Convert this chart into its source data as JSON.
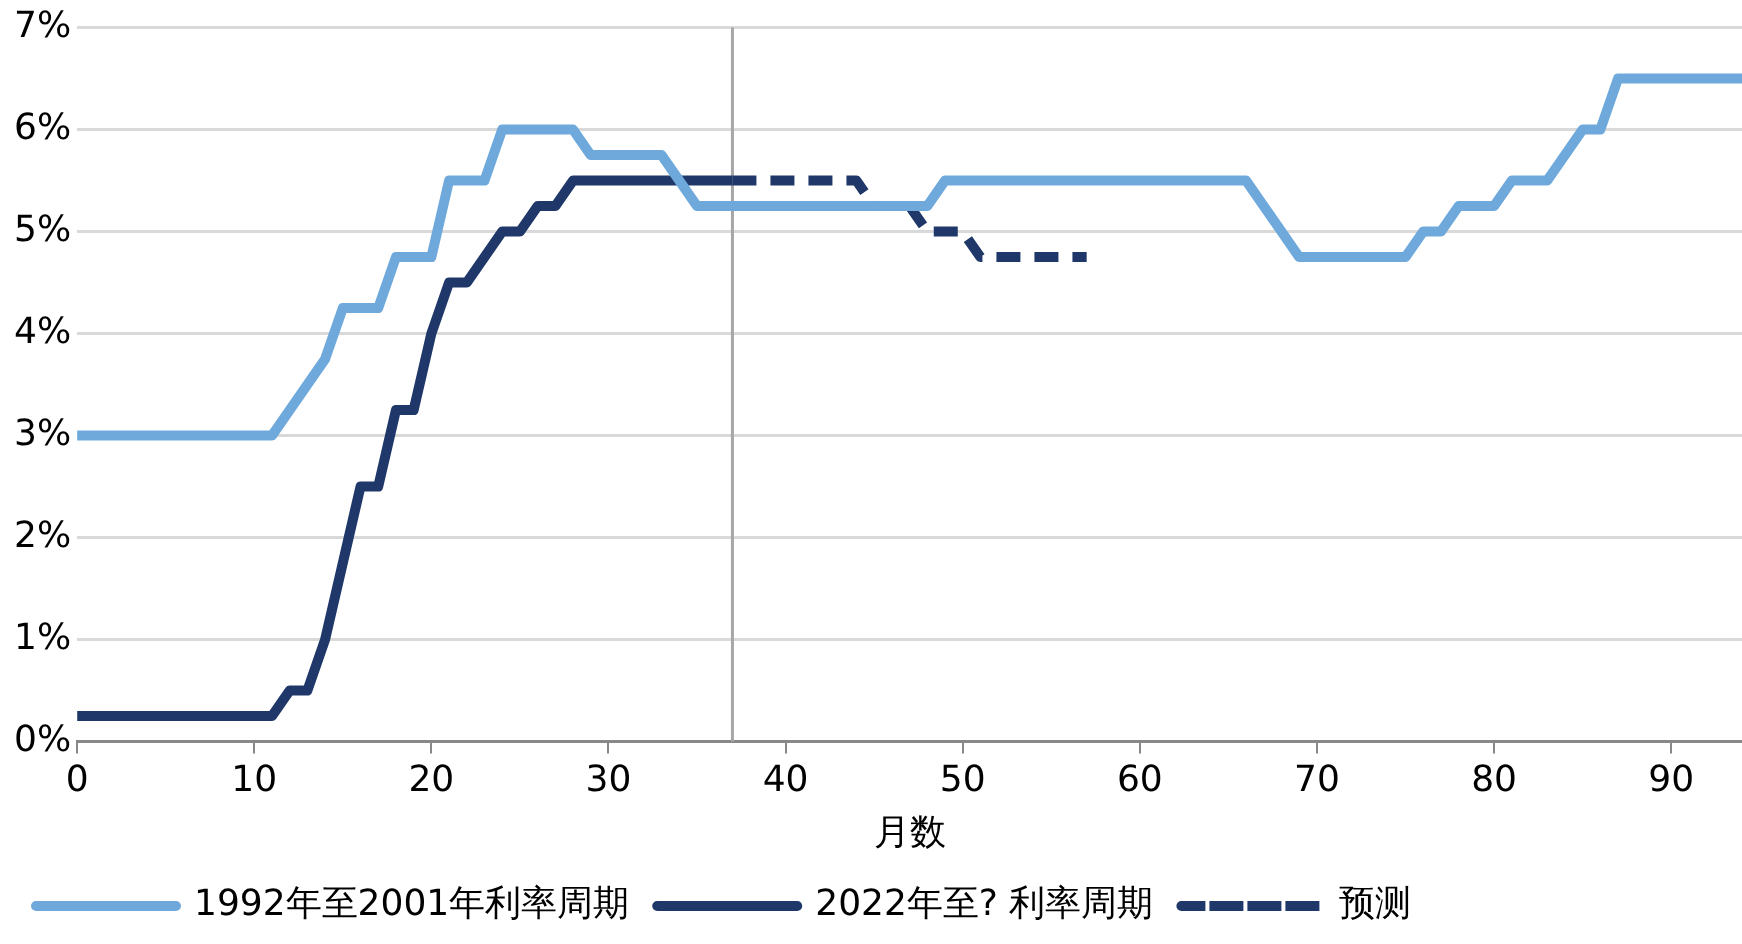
{
  "chart_data": {
    "type": "line",
    "xlabel": "月数",
    "xlim": [
      0,
      94
    ],
    "xticks": [
      0,
      10,
      20,
      30,
      40,
      50,
      60,
      70,
      80,
      90
    ],
    "ylim": [
      0,
      7
    ],
    "yticks": [
      {
        "value": 0,
        "label": "0%"
      },
      {
        "value": 1,
        "label": "1%"
      },
      {
        "value": 2,
        "label": "2%"
      },
      {
        "value": 3,
        "label": "3%"
      },
      {
        "value": 4,
        "label": "4%"
      },
      {
        "value": 5,
        "label": "5%"
      },
      {
        "value": 6,
        "label": "6%"
      },
      {
        "value": 7,
        "label": "7%"
      }
    ],
    "grid": "y",
    "legend": "bottom",
    "marker": "none",
    "series": [
      {
        "name": "1992年至2001年利率周期",
        "color": "#6fa9dc",
        "line_style": "solid",
        "x": [
          0,
          11,
          14,
          15,
          17,
          18,
          20,
          21,
          23,
          24,
          28,
          29,
          33,
          35,
          48,
          49,
          66,
          69,
          75,
          76,
          77,
          78,
          80,
          81,
          83,
          85,
          86,
          87,
          94
        ],
        "values": [
          3,
          3,
          3.75,
          4.25,
          4.25,
          4.75,
          4.75,
          5.5,
          5.5,
          6,
          6,
          5.75,
          5.75,
          5.25,
          5.25,
          5.5,
          5.5,
          4.75,
          4.75,
          5,
          5,
          5.25,
          5.25,
          5.5,
          5.5,
          6,
          6,
          6.5,
          6.5
        ]
      },
      {
        "name": "2022年至? 利率周期",
        "color": "#1f3869",
        "line_style": "solid",
        "x": [
          0,
          11,
          12,
          13,
          14,
          16,
          17,
          18,
          19,
          20,
          21,
          22,
          24,
          25,
          26,
          27,
          28,
          37
        ],
        "values": [
          0.25,
          0.25,
          0.5,
          0.5,
          1,
          2.5,
          2.5,
          3.25,
          3.25,
          4,
          4.5,
          4.5,
          5,
          5,
          5.25,
          5.25,
          5.5,
          5.5
        ]
      },
      {
        "name": "预测",
        "color": "#1f3869",
        "line_style": "dashed",
        "x": [
          37,
          44,
          45,
          47,
          48,
          50,
          51,
          57
        ],
        "values": [
          5.5,
          5.5,
          5.25,
          5.25,
          5,
          5,
          4.75,
          4.75
        ]
      }
    ],
    "ref_lines": [
      {
        "axis": "x",
        "value": 37,
        "color": "#a6a6a6"
      }
    ]
  }
}
